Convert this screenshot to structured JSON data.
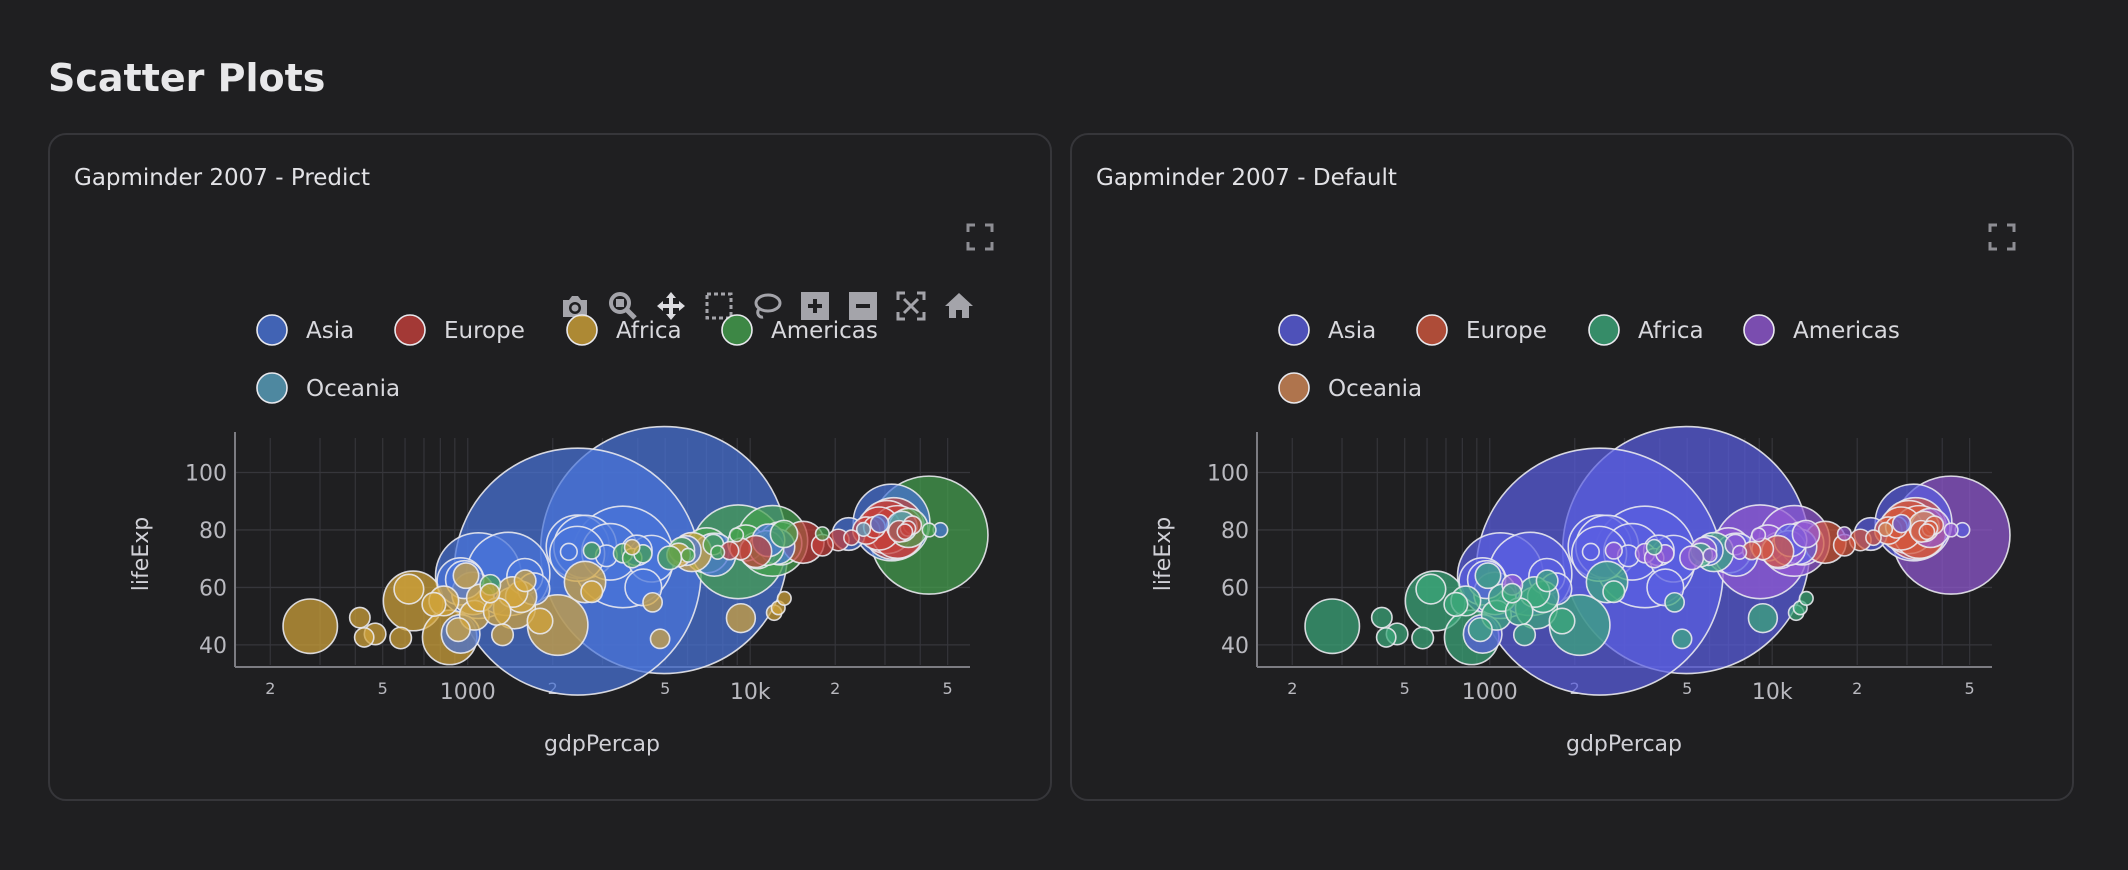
{
  "page": {
    "title": "Scatter Plots"
  },
  "modebar": {
    "buttons": [
      "camera-icon",
      "zoom-icon",
      "pan-icon",
      "box-select-icon",
      "lasso-icon",
      "zoom-in-icon",
      "zoom-out-icon",
      "autoscale-icon",
      "reset-axes-icon"
    ]
  },
  "charts": [
    {
      "title": "Gapminder 2007 - Predict",
      "colors": {
        "Asia": "#4a74d9",
        "Europe": "#c4403c",
        "Africa": "#d1a43a",
        "Americas": "#45a14f",
        "Oceania": "#5aa2c0"
      }
    },
    {
      "title": "Gapminder 2007 - Default",
      "colors": {
        "Asia": "#5a5ee0",
        "Europe": "#d2573e",
        "Africa": "#3ca77a",
        "Americas": "#9159d3",
        "Oceania": "#d38a59"
      }
    }
  ],
  "chart_data": [
    {
      "type": "scatter",
      "title": "Gapminder 2007 - Predict",
      "xlabel": "gdpPercap",
      "ylabel": "lifeExp",
      "xscale": "log",
      "xlim": [
        150,
        60000
      ],
      "ylim": [
        33,
        112
      ],
      "x_ticks": [
        "2",
        "5",
        "1000",
        "2",
        "5",
        "10k",
        "2",
        "5"
      ],
      "y_ticks": [
        40,
        60,
        80,
        100
      ],
      "legend": [
        "Asia",
        "Europe",
        "Africa",
        "Americas",
        "Oceania"
      ],
      "legend_position": "top",
      "series": [
        {
          "name": "Asia",
          "points": [
            {
              "x": 2450,
              "y": 65.5,
              "size": 1318
            },
            {
              "x": 4959,
              "y": 73,
              "size": 1319
            },
            {
              "x": 1391,
              "y": 64.7,
              "size": 150
            },
            {
              "x": 3540,
              "y": 70.6,
              "size": 223
            },
            {
              "x": 2605,
              "y": 74.2,
              "size": 85
            },
            {
              "x": 31656,
              "y": 82.6,
              "size": 127
            },
            {
              "x": 1091,
              "y": 64.1,
              "size": 159
            },
            {
              "x": 12452,
              "y": 74.2,
              "size": 27
            },
            {
              "x": 3190,
              "y": 72.4,
              "size": 69
            },
            {
              "x": 944,
              "y": 62.1,
              "size": 48
            },
            {
              "x": 2441,
              "y": 71.7,
              "size": 65
            },
            {
              "x": 4471,
              "y": 70,
              "size": 47
            },
            {
              "x": 11606,
              "y": 76.4,
              "size": 23
            },
            {
              "x": 28718,
              "y": 82.2,
              "size": 7
            },
            {
              "x": 1593,
              "y": 63.8,
              "size": 28
            },
            {
              "x": 3970,
              "y": 72.9,
              "size": 20
            },
            {
              "x": 22316,
              "y": 78.6,
              "size": 23
            },
            {
              "x": 47143,
              "y": 80,
              "size": 4.5
            },
            {
              "x": 5937,
              "y": 72.8,
              "size": 19
            },
            {
              "x": 2452,
              "y": 74.2,
              "size": 86
            },
            {
              "x": 1713,
              "y": 59.5,
              "size": 22
            },
            {
              "x": 4185,
              "y": 60,
              "size": 29
            },
            {
              "x": 3096,
              "y": 71,
              "size": 10
            },
            {
              "x": 7458,
              "y": 71.4,
              "size": 40
            },
            {
              "x": 2280,
              "y": 72.4,
              "size": 6
            },
            {
              "x": 944,
              "y": 43.8,
              "size": 32
            },
            {
              "x": 974,
              "y": 62.7,
              "size": 31
            }
          ]
        },
        {
          "name": "Europe",
          "points": [
            {
              "x": 33692,
              "y": 79.5,
              "size": 10
            },
            {
              "x": 32170,
              "y": 80.5,
              "size": 82
            },
            {
              "x": 30470,
              "y": 81,
              "size": 61
            },
            {
              "x": 28569,
              "y": 80.5,
              "size": 40
            },
            {
              "x": 33203,
              "y": 79.3,
              "size": 60
            },
            {
              "x": 15390,
              "y": 75.7,
              "size": 38
            },
            {
              "x": 36180,
              "y": 80.5,
              "size": 5
            },
            {
              "x": 27538,
              "y": 80.9,
              "size": 10
            },
            {
              "x": 20510,
              "y": 76.5,
              "size": 10
            },
            {
              "x": 10461,
              "y": 72.5,
              "size": 22
            },
            {
              "x": 18009,
              "y": 74.7,
              "size": 10
            },
            {
              "x": 35278,
              "y": 79.4,
              "size": 5
            },
            {
              "x": 25768,
              "y": 79.8,
              "size": 16
            },
            {
              "x": 8458,
              "y": 72.8,
              "size": 7
            },
            {
              "x": 9253,
              "y": 73.4,
              "size": 10
            },
            {
              "x": 22833,
              "y": 77.3,
              "size": 5
            },
            {
              "x": 37506,
              "y": 81.7,
              "size": 7
            }
          ]
        },
        {
          "name": "Africa",
          "points": [
            {
              "x": 277,
              "y": 46.5,
              "size": 64
            },
            {
              "x": 430,
              "y": 42.6,
              "size": 8
            },
            {
              "x": 470,
              "y": 43.8,
              "size": 10
            },
            {
              "x": 415,
              "y": 49.5,
              "size": 9
            },
            {
              "x": 641,
              "y": 55.3,
              "size": 77
            },
            {
              "x": 863,
              "y": 42.6,
              "size": 64
            },
            {
              "x": 1463,
              "y": 52.9,
              "size": 38
            },
            {
              "x": 1545,
              "y": 56.7,
              "size": 21
            },
            {
              "x": 2082,
              "y": 46.9,
              "size": 79
            },
            {
              "x": 2602,
              "y": 61.9,
              "size": 37
            },
            {
              "x": 4797,
              "y": 42.1,
              "size": 8
            },
            {
              "x": 9269,
              "y": 49.3,
              "size": 18
            },
            {
              "x": 12570,
              "y": 52.9,
              "size": 4
            },
            {
              "x": 6223,
              "y": 72.3,
              "size": 33
            },
            {
              "x": 5581,
              "y": 71.3,
              "size": 12
            },
            {
              "x": 3820,
              "y": 74,
              "size": 5
            },
            {
              "x": 1597,
              "y": 62.3,
              "size": 10
            },
            {
              "x": 1441,
              "y": 58.4,
              "size": 20
            },
            {
              "x": 1107,
              "y": 56.4,
              "size": 16
            },
            {
              "x": 926,
              "y": 45.3,
              "size": 12
            },
            {
              "x": 823,
              "y": 55.3,
              "size": 19
            },
            {
              "x": 619,
              "y": 59.4,
              "size": 19
            },
            {
              "x": 1044,
              "y": 57.9,
              "size": 39
            },
            {
              "x": 1056,
              "y": 50.3,
              "size": 19
            },
            {
              "x": 1271,
              "y": 51.6,
              "size": 16
            },
            {
              "x": 2749,
              "y": 58.5,
              "size": 10
            },
            {
              "x": 4513,
              "y": 54.8,
              "size": 8
            },
            {
              "x": 13206,
              "y": 56.2,
              "size": 4
            },
            {
              "x": 12154,
              "y": 51.2,
              "size": 5
            },
            {
              "x": 1328,
              "y": 43.5,
              "size": 10
            },
            {
              "x": 1803,
              "y": 48.3,
              "size": 14
            },
            {
              "x": 759,
              "y": 54.1,
              "size": 12
            },
            {
              "x": 579,
              "y": 42.4,
              "size": 10
            },
            {
              "x": 986,
              "y": 64.1,
              "size": 14
            },
            {
              "x": 1199,
              "y": 58,
              "size": 8
            }
          ]
        },
        {
          "name": "Americas",
          "points": [
            {
              "x": 42952,
              "y": 78.2,
              "size": 301
            },
            {
              "x": 9066,
              "y": 72.4,
              "size": 190
            },
            {
              "x": 11978,
              "y": 76.2,
              "size": 108
            },
            {
              "x": 12779,
              "y": 75.3,
              "size": 40
            },
            {
              "x": 36319,
              "y": 80.7,
              "size": 33
            },
            {
              "x": 7007,
              "y": 72.9,
              "size": 44
            },
            {
              "x": 13172,
              "y": 78.6,
              "size": 16
            },
            {
              "x": 10611,
              "y": 72.9,
              "size": 29
            },
            {
              "x": 5728,
              "y": 73,
              "size": 14
            },
            {
              "x": 8948,
              "y": 78.3,
              "size": 4
            },
            {
              "x": 9646,
              "y": 75.5,
              "size": 28
            },
            {
              "x": 3548,
              "y": 71.9,
              "size": 8
            },
            {
              "x": 5186,
              "y": 70.3,
              "size": 12
            },
            {
              "x": 2749,
              "y": 72.8,
              "size": 6
            },
            {
              "x": 7408,
              "y": 74.9,
              "size": 9
            },
            {
              "x": 6025,
              "y": 71.2,
              "size": 4
            },
            {
              "x": 1202,
              "y": 60.9,
              "size": 9
            },
            {
              "x": 18008,
              "y": 78.7,
              "size": 4
            },
            {
              "x": 4172,
              "y": 71.7,
              "size": 7
            },
            {
              "x": 3822,
              "y": 70.2,
              "size": 8
            },
            {
              "x": 11415,
              "y": 73.7,
              "size": 26
            },
            {
              "x": 7670,
              "y": 72.2,
              "size": 4
            },
            {
              "x": 43000,
              "y": 80,
              "size": 4
            }
          ]
        },
        {
          "name": "Oceania",
          "points": [
            {
              "x": 34435,
              "y": 81.2,
              "size": 20
            },
            {
              "x": 25185,
              "y": 80.2,
              "size": 4
            }
          ]
        }
      ]
    },
    {
      "type": "scatter",
      "title": "Gapminder 2007 - Default",
      "xlabel": "gdpPercap",
      "ylabel": "lifeExp",
      "xscale": "log",
      "xlim": [
        150,
        60000
      ],
      "ylim": [
        33,
        112
      ],
      "x_ticks": [
        "2",
        "5",
        "1000",
        "2",
        "5",
        "10k",
        "2",
        "5"
      ],
      "y_ticks": [
        40,
        60,
        80,
        100
      ],
      "legend": [
        "Asia",
        "Europe",
        "Africa",
        "Americas",
        "Oceania"
      ],
      "legend_position": "top",
      "series_same_as": "Gapminder 2007 - Predict"
    }
  ]
}
